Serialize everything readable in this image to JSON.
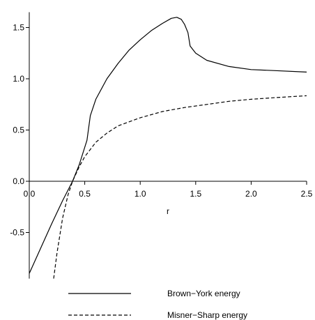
{
  "chart_data": {
    "type": "line",
    "xlabel": "r",
    "ylabel": "",
    "xlim": [
      0,
      2.5
    ],
    "ylim": [
      -0.95,
      1.65
    ],
    "x_ticks": [
      0,
      0.5,
      1,
      1.5,
      2,
      2.5
    ],
    "x_tick_labels": [
      "0.0",
      "0.5",
      "1.0",
      "1.5",
      "2.0",
      "2.5"
    ],
    "y_ticks": [
      -0.5,
      0,
      0.5,
      1,
      1.5
    ],
    "y_tick_labels": [
      "-0.5",
      "0.0",
      "0.5",
      "1.0",
      "1.5"
    ],
    "grid": false,
    "legend": "bottom",
    "series": [
      {
        "name": "Brown−York energy",
        "style": "solid",
        "color": "#000000",
        "x": [
          0,
          0.1,
          0.2,
          0.3,
          0.39,
          0.45,
          0.52,
          0.55,
          0.6,
          0.7,
          0.8,
          0.9,
          1.0,
          1.1,
          1.2,
          1.28,
          1.33,
          1.37,
          1.4,
          1.43,
          1.45,
          1.5,
          1.6,
          1.8,
          2.0,
          2.2,
          2.5
        ],
        "values": [
          -0.9,
          -0.66,
          -0.42,
          -0.19,
          0.0,
          0.16,
          0.4,
          0.64,
          0.8,
          1.0,
          1.15,
          1.28,
          1.38,
          1.47,
          1.54,
          1.59,
          1.6,
          1.58,
          1.53,
          1.45,
          1.32,
          1.25,
          1.18,
          1.12,
          1.09,
          1.08,
          1.065
        ]
      },
      {
        "name": "Misner−Sharp energy",
        "style": "dashed",
        "color": "#000000",
        "x": [
          0.22,
          0.25,
          0.3,
          0.35,
          0.39,
          0.45,
          0.5,
          0.6,
          0.7,
          0.8,
          1.0,
          1.2,
          1.4,
          1.6,
          1.8,
          2.0,
          2.2,
          2.5
        ],
        "values": [
          -0.95,
          -0.7,
          -0.36,
          -0.13,
          0.0,
          0.14,
          0.24,
          0.38,
          0.47,
          0.54,
          0.62,
          0.68,
          0.72,
          0.75,
          0.78,
          0.8,
          0.815,
          0.835
        ]
      }
    ]
  }
}
